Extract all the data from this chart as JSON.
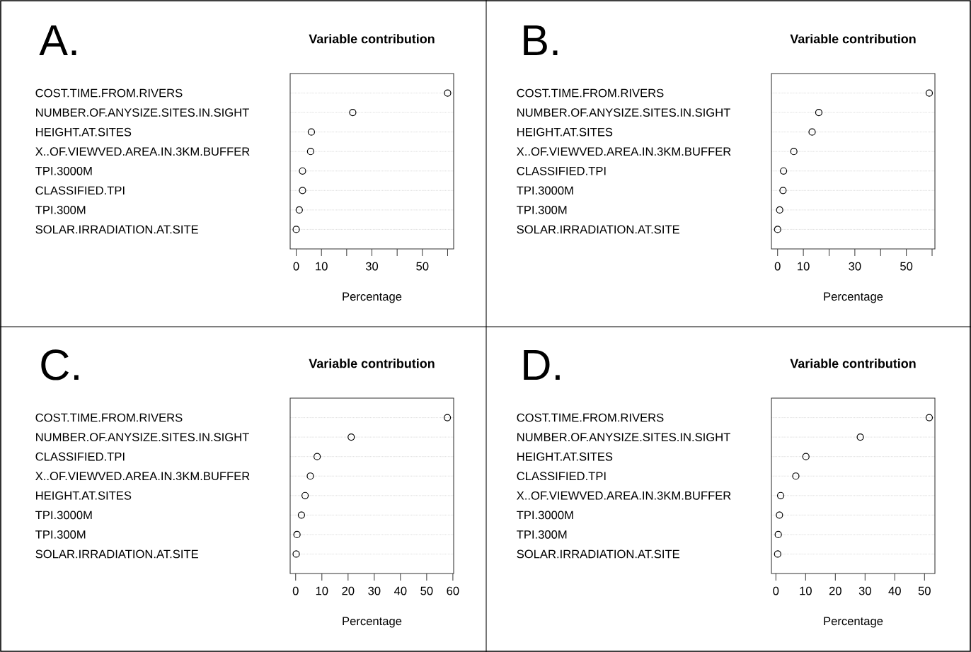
{
  "chart_data": [
    {
      "type": "scatter",
      "orientation": "horizontal",
      "title": "Variable contribution",
      "xlabel": "Percentage",
      "annotations": [
        "A."
      ],
      "marker": "circle",
      "grid": "y",
      "color": "#000000",
      "categories": [
        "COST.TIME.FROM.RIVERS",
        "NUMBER.OF.ANYSIZE.SITES.IN.SIGHT",
        "HEIGHT.AT.SITES",
        "X..OF.VIEWVED.AREA.IN.3KM.BUFFER",
        "TPI.3000M",
        "CLASSIFIED.TPI",
        "TPI.300M",
        "SOLAR.IRRADIATION.AT.SITE"
      ],
      "values": [
        60.0,
        22.4,
        6.0,
        5.7,
        2.5,
        2.5,
        1.2,
        0.0
      ],
      "xlim": [
        -2.4,
        62.4
      ],
      "xticks": [
        0,
        10,
        {
          "value": 20,
          "label": null
        },
        30,
        {
          "value": 40,
          "label": null
        },
        50,
        {
          "value": 60,
          "label": null
        }
      ]
    },
    {
      "type": "scatter",
      "orientation": "horizontal",
      "title": "Variable contribution",
      "xlabel": "Percentage",
      "annotations": [
        "B."
      ],
      "marker": "circle",
      "grid": "y",
      "color": "#000000",
      "categories": [
        "COST.TIME.FROM.RIVERS",
        "NUMBER.OF.ANYSIZE.SITES.IN.SIGHT",
        "HEIGHT.AT.SITES",
        "X..OF.VIEWVED.AREA.IN.3KM.BUFFER",
        "CLASSIFIED.TPI",
        "TPI.3000M",
        "TPI.300M",
        "SOLAR.IRRADIATION.AT.SITE"
      ],
      "values": [
        58.9,
        16.0,
        13.4,
        6.3,
        2.3,
        2.1,
        0.8,
        0.0
      ],
      "xlim": [
        -2.4,
        61.1
      ],
      "xticks": [
        0,
        10,
        {
          "value": 20,
          "label": null
        },
        30,
        {
          "value": 40,
          "label": null
        },
        50,
        {
          "value": 60,
          "label": null
        }
      ]
    },
    {
      "type": "scatter",
      "orientation": "horizontal",
      "title": "Variable contribution",
      "xlabel": "Percentage",
      "annotations": [
        "C."
      ],
      "marker": "circle",
      "grid": "y",
      "color": "#000000",
      "categories": [
        "COST.TIME.FROM.RIVERS",
        "NUMBER.OF.ANYSIZE.SITES.IN.SIGHT",
        "CLASSIFIED.TPI",
        "X..OF.VIEWVED.AREA.IN.3KM.BUFFER",
        "HEIGHT.AT.SITES",
        "TPI.3000M",
        "TPI.300M",
        "SOLAR.IRRADIATION.AT.SITE"
      ],
      "values": [
        57.9,
        21.2,
        8.2,
        5.6,
        3.6,
        2.2,
        0.5,
        0.2
      ],
      "xlim": [
        -2.1,
        60.3
      ],
      "xticks": [
        0,
        10,
        20,
        30,
        40,
        50,
        60
      ]
    },
    {
      "type": "scatter",
      "orientation": "horizontal",
      "title": "Variable contribution",
      "xlabel": "Percentage",
      "annotations": [
        "D."
      ],
      "marker": "circle",
      "grid": "y",
      "color": "#000000",
      "categories": [
        "COST.TIME.FROM.RIVERS",
        "NUMBER.OF.ANYSIZE.SITES.IN.SIGHT",
        "HEIGHT.AT.SITES",
        "CLASSIFIED.TPI",
        "X..OF.VIEWVED.AREA.IN.3KM.BUFFER",
        "TPI.3000M",
        "TPI.300M",
        "SOLAR.IRRADIATION.AT.SITE"
      ],
      "values": [
        51.6,
        28.4,
        10.1,
        6.7,
        1.6,
        1.2,
        0.8,
        0.6
      ],
      "xlim": [
        -1.5,
        53.5
      ],
      "xticks": [
        0,
        10,
        20,
        30,
        40,
        50
      ]
    }
  ]
}
